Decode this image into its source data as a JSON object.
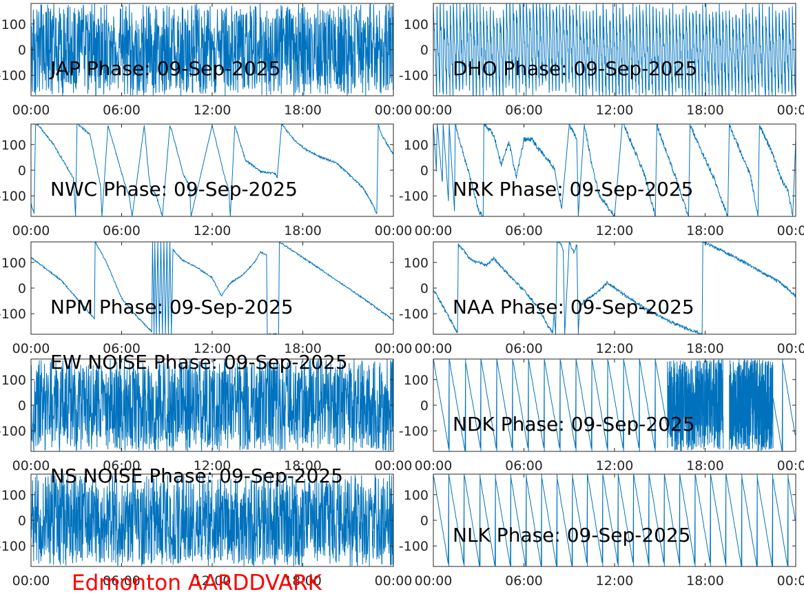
{
  "footer_label": "Edmonton AARDDVARK",
  "colors": {
    "trace": "#0072BD",
    "axes": "#262626",
    "footer": "#ff0000"
  },
  "chart_data": [
    {
      "type": "line",
      "title": "JAP Phase: 09-Sep-2025",
      "xlabel": "",
      "ylabel": "",
      "x_unit": "hours",
      "xlim": [
        0,
        24
      ],
      "ylim": [
        -180,
        180
      ],
      "xticks": [
        0,
        6,
        12,
        18,
        24
      ],
      "xtick_labels": [
        "00:00",
        "06:00",
        "12:00",
        "18:00",
        "00:00"
      ],
      "yticks": [
        100,
        0,
        -100
      ],
      "ytick_labels": [
        "100",
        "0",
        "-100"
      ],
      "series": [
        {
          "x": [
            0,
            24
          ],
          "y": [
            -180,
            180
          ],
          "character": "noise",
          "amplitude": 180
        }
      ]
    },
    {
      "type": "line",
      "title": "DHO Phase: 09-Sep-2025",
      "xlabel": "",
      "ylabel": "",
      "x_unit": "hours",
      "xlim": [
        0,
        24
      ],
      "ylim": [
        -180,
        180
      ],
      "xticks": [
        0,
        6,
        12,
        18,
        24
      ],
      "xtick_labels": [
        "00:00",
        "06:00",
        "12:00",
        "18:00",
        "00:00"
      ],
      "yticks": [
        100,
        0,
        -100
      ],
      "ytick_labels": [
        "100",
        "0",
        "-100"
      ],
      "series": [
        {
          "x": [
            0,
            24
          ],
          "y": [
            -180,
            180
          ],
          "character": "fast_wrap",
          "period_hours": 0.22
        }
      ]
    },
    {
      "type": "line",
      "title": "NWC Phase: 09-Sep-2025",
      "xlabel": "",
      "ylabel": "",
      "x_unit": "hours",
      "xlim": [
        0,
        24
      ],
      "ylim": [
        -180,
        180
      ],
      "xticks": [
        0,
        6,
        12,
        18,
        24
      ],
      "xtick_labels": [
        "00:00",
        "06:00",
        "12:00",
        "18:00",
        "00:00"
      ],
      "yticks": [
        100,
        0,
        -100
      ],
      "ytick_labels": [
        "100",
        "0",
        "-100"
      ],
      "series": [
        {
          "x": [
            0,
            0.2,
            0.3,
            0.5,
            1.5,
            2.8,
            2.95,
            3.05,
            3.1,
            3.9,
            4.6,
            4.7,
            5.1,
            6.2,
            6.5,
            6.7,
            7.5,
            7.8,
            7.9,
            8.3,
            8.7,
            9.2,
            9.3,
            10.1,
            10.5,
            10.6,
            12,
            12.8,
            13.1,
            13.2,
            13.5,
            14.2,
            15.2,
            16.2,
            16.3,
            16.6,
            17.4,
            18.2,
            19.2,
            20.2,
            21.2,
            22,
            22.6,
            22.9,
            23,
            23.2,
            23.6,
            24
          ],
          "y": [
            -130,
            -170,
            180,
            175,
            100,
            -30,
            -180,
            180,
            180,
            140,
            -60,
            -180,
            175,
            -50,
            -100,
            -180,
            175,
            -20,
            -60,
            -100,
            -180,
            175,
            160,
            -20,
            -60,
            -180,
            175,
            -20,
            -80,
            -180,
            175,
            40,
            -5,
            -15,
            -30,
            180,
            120,
            80,
            50,
            30,
            -25,
            -70,
            -130,
            -170,
            180,
            140,
            100,
            60
          ],
          "character": "sawtooth",
          "noise": 4
        }
      ]
    },
    {
      "type": "line",
      "title": "NRK Phase: 09-Sep-2025",
      "xlabel": "",
      "ylabel": "",
      "x_unit": "hours",
      "xlim": [
        0,
        24
      ],
      "ylim": [
        -180,
        180
      ],
      "xticks": [
        0,
        6,
        12,
        18,
        24
      ],
      "xtick_labels": [
        "00:00",
        "06:00",
        "12:00",
        "18:00",
        "00:00"
      ],
      "yticks": [
        100,
        0,
        -100
      ],
      "ytick_labels": [
        "100",
        "0",
        "-100"
      ],
      "series": [
        {
          "x": [
            0,
            0.2,
            0.25,
            0.6,
            0.65,
            1,
            1.05,
            1.4,
            1.45,
            2,
            2.5,
            3,
            3.3,
            3.35,
            4,
            4.5,
            5,
            5.5,
            6,
            6.5,
            7,
            7.5,
            8,
            8.5,
            9,
            9.5,
            9.6,
            10,
            10.5,
            11,
            12,
            12.5,
            12.6,
            14,
            14.7,
            14.8,
            16,
            16.9,
            17,
            18.5,
            19.5,
            19.6,
            21,
            21.5,
            21.6,
            22.5,
            23,
            23.5,
            23.8,
            24
          ],
          "y": [
            180,
            0,
            180,
            -50,
            180,
            -120,
            180,
            -160,
            180,
            60,
            -40,
            -160,
            -180,
            180,
            140,
            20,
            110,
            -30,
            120,
            120,
            80,
            50,
            10,
            -150,
            180,
            120,
            -180,
            180,
            20,
            -100,
            -180,
            175,
            180,
            -20,
            -180,
            175,
            -20,
            -180,
            175,
            -20,
            -180,
            175,
            -20,
            -180,
            175,
            60,
            -30,
            -80,
            -180,
            120
          ],
          "character": "sawtooth",
          "noise": 10
        }
      ]
    },
    {
      "type": "line",
      "title": "NPM Phase: 09-Sep-2025",
      "xlabel": "",
      "ylabel": "",
      "x_unit": "hours",
      "xlim": [
        0,
        24
      ],
      "ylim": [
        -180,
        180
      ],
      "xticks": [
        0,
        6,
        12,
        18,
        24
      ],
      "xtick_labels": [
        "00:00",
        "06:00",
        "12:00",
        "18:00",
        "00:00"
      ],
      "yticks": [
        100,
        0,
        -100
      ],
      "ytick_labels": [
        "100",
        "0",
        "-100"
      ],
      "series": [
        {
          "x": [
            0,
            2,
            4.2,
            4.25,
            5,
            6,
            7,
            8,
            8.05,
            8.15,
            8.2,
            8.3,
            8.4,
            8.5,
            8.6,
            8.7,
            8.8,
            8.9,
            9,
            9.1,
            9.2,
            9.3,
            9.4,
            10,
            11,
            12,
            12.6,
            13.2,
            14,
            14.8,
            15.2,
            15.6,
            15.65,
            16.4,
            16.45,
            19,
            22,
            24
          ],
          "y": [
            120,
            30,
            -120,
            180,
            100,
            -40,
            -110,
            -170,
            180,
            -180,
            180,
            -180,
            180,
            -180,
            180,
            -180,
            180,
            -180,
            180,
            -180,
            180,
            -180,
            150,
            110,
            80,
            40,
            -30,
            20,
            50,
            100,
            140,
            130,
            -180,
            -180,
            180,
            80,
            -40,
            -125
          ],
          "character": "smooth",
          "noise": 3
        }
      ]
    },
    {
      "type": "line",
      "title": "NAA Phase: 09-Sep-2025",
      "xlabel": "",
      "ylabel": "",
      "x_unit": "hours",
      "xlim": [
        0,
        24
      ],
      "ylim": [
        -180,
        180
      ],
      "xticks": [
        0,
        6,
        12,
        18,
        24
      ],
      "xtick_labels": [
        "00:00",
        "06:00",
        "12:00",
        "18:00",
        "00:00"
      ],
      "yticks": [
        100,
        0,
        -100
      ],
      "ytick_labels": [
        "100",
        "0",
        "-100"
      ],
      "series": [
        {
          "x": [
            0,
            1,
            1.6,
            1.65,
            2.5,
            3.5,
            4,
            5,
            6,
            7,
            7.6,
            7.9,
            8,
            8.1,
            8.2,
            8.4,
            8.6,
            8.7,
            9,
            9.3,
            9.5,
            9.6,
            9.7,
            10,
            11,
            11.5,
            12.5,
            14,
            16,
            17.8,
            17.85,
            20,
            23,
            24
          ],
          "y": [
            -5,
            -110,
            -175,
            170,
            110,
            90,
            115,
            50,
            -10,
            -80,
            -150,
            -175,
            -100,
            -180,
            180,
            180,
            150,
            -180,
            180,
            140,
            170,
            -180,
            -70,
            -50,
            -10,
            20,
            -20,
            -80,
            -140,
            -180,
            180,
            120,
            20,
            -30
          ],
          "character": "smooth",
          "noise": 6
        }
      ]
    },
    {
      "type": "line",
      "title": "EW NOISE Phase: 09-Sep-2025",
      "xlabel": "",
      "ylabel": "",
      "x_unit": "hours",
      "xlim": [
        0,
        24
      ],
      "ylim": [
        -180,
        180
      ],
      "xticks": [
        0,
        6,
        12,
        18,
        24
      ],
      "xtick_labels": [
        "00:00",
        "06:00",
        "12:00",
        "18:00",
        "00:00"
      ],
      "yticks": [
        100,
        0,
        -100
      ],
      "ytick_labels": [
        "100",
        "0",
        "-100"
      ],
      "series": [
        {
          "x": [
            0,
            24
          ],
          "y": [
            -180,
            180
          ],
          "character": "noise",
          "amplitude": 180
        }
      ]
    },
    {
      "type": "line",
      "title": "NDK Phase: 09-Sep-2025",
      "xlabel": "",
      "ylabel": "",
      "x_unit": "hours",
      "xlim": [
        0,
        24
      ],
      "ylim": [
        -180,
        180
      ],
      "xticks": [
        0,
        6,
        12,
        18,
        24
      ],
      "xtick_labels": [
        "00:00",
        "06:00",
        "12:00",
        "18:00",
        "00:00"
      ],
      "yticks": [
        100,
        0,
        -100
      ],
      "ytick_labels": [
        "100",
        "0",
        "-100"
      ],
      "series": [
        {
          "x": [
            0,
            15.5
          ],
          "y": [
            -180,
            180
          ],
          "character": "sawtooth_regular",
          "period_hours": 1.05
        },
        {
          "x": [
            15.5,
            22.5
          ],
          "y": [
            -180,
            180
          ],
          "character": "noise_bands",
          "bands": [
            [
              15.5,
              19.2
            ],
            [
              19.6,
              22.5
            ]
          ]
        },
        {
          "x": [
            22.5,
            24
          ],
          "y": [
            -180,
            180
          ],
          "character": "sawtooth_regular",
          "period_hours": 1.05
        }
      ]
    },
    {
      "type": "line",
      "title": "NS NOISE Phase: 09-Sep-2025",
      "xlabel": "",
      "ylabel": "",
      "x_unit": "hours",
      "xlim": [
        0,
        24
      ],
      "ylim": [
        -180,
        180
      ],
      "xticks": [
        0,
        6,
        12,
        18,
        24
      ],
      "xtick_labels": [
        "00:00",
        "06:00",
        "12:00",
        "18:00",
        "00:00"
      ],
      "yticks": [
        100,
        0,
        -100
      ],
      "ytick_labels": [
        "100",
        "0",
        "-100"
      ],
      "series": [
        {
          "x": [
            0,
            24
          ],
          "y": [
            -180,
            180
          ],
          "character": "noise",
          "amplitude": 180
        }
      ]
    },
    {
      "type": "line",
      "title": "NLK Phase: 09-Sep-2025",
      "xlabel": "",
      "ylabel": "",
      "x_unit": "hours",
      "xlim": [
        0,
        24
      ],
      "ylim": [
        -180,
        180
      ],
      "xticks": [
        0,
        6,
        12,
        18,
        24
      ],
      "xtick_labels": [
        "00:00",
        "06:00",
        "12:00",
        "18:00",
        "00:00"
      ],
      "yticks": [
        100,
        0,
        -100
      ],
      "ytick_labels": [
        "100",
        "0",
        "-100"
      ],
      "series": [
        {
          "x": [
            0,
            24
          ],
          "y": [
            -180,
            180
          ],
          "character": "sawtooth_regular",
          "period_hours": 1.02
        }
      ]
    }
  ]
}
